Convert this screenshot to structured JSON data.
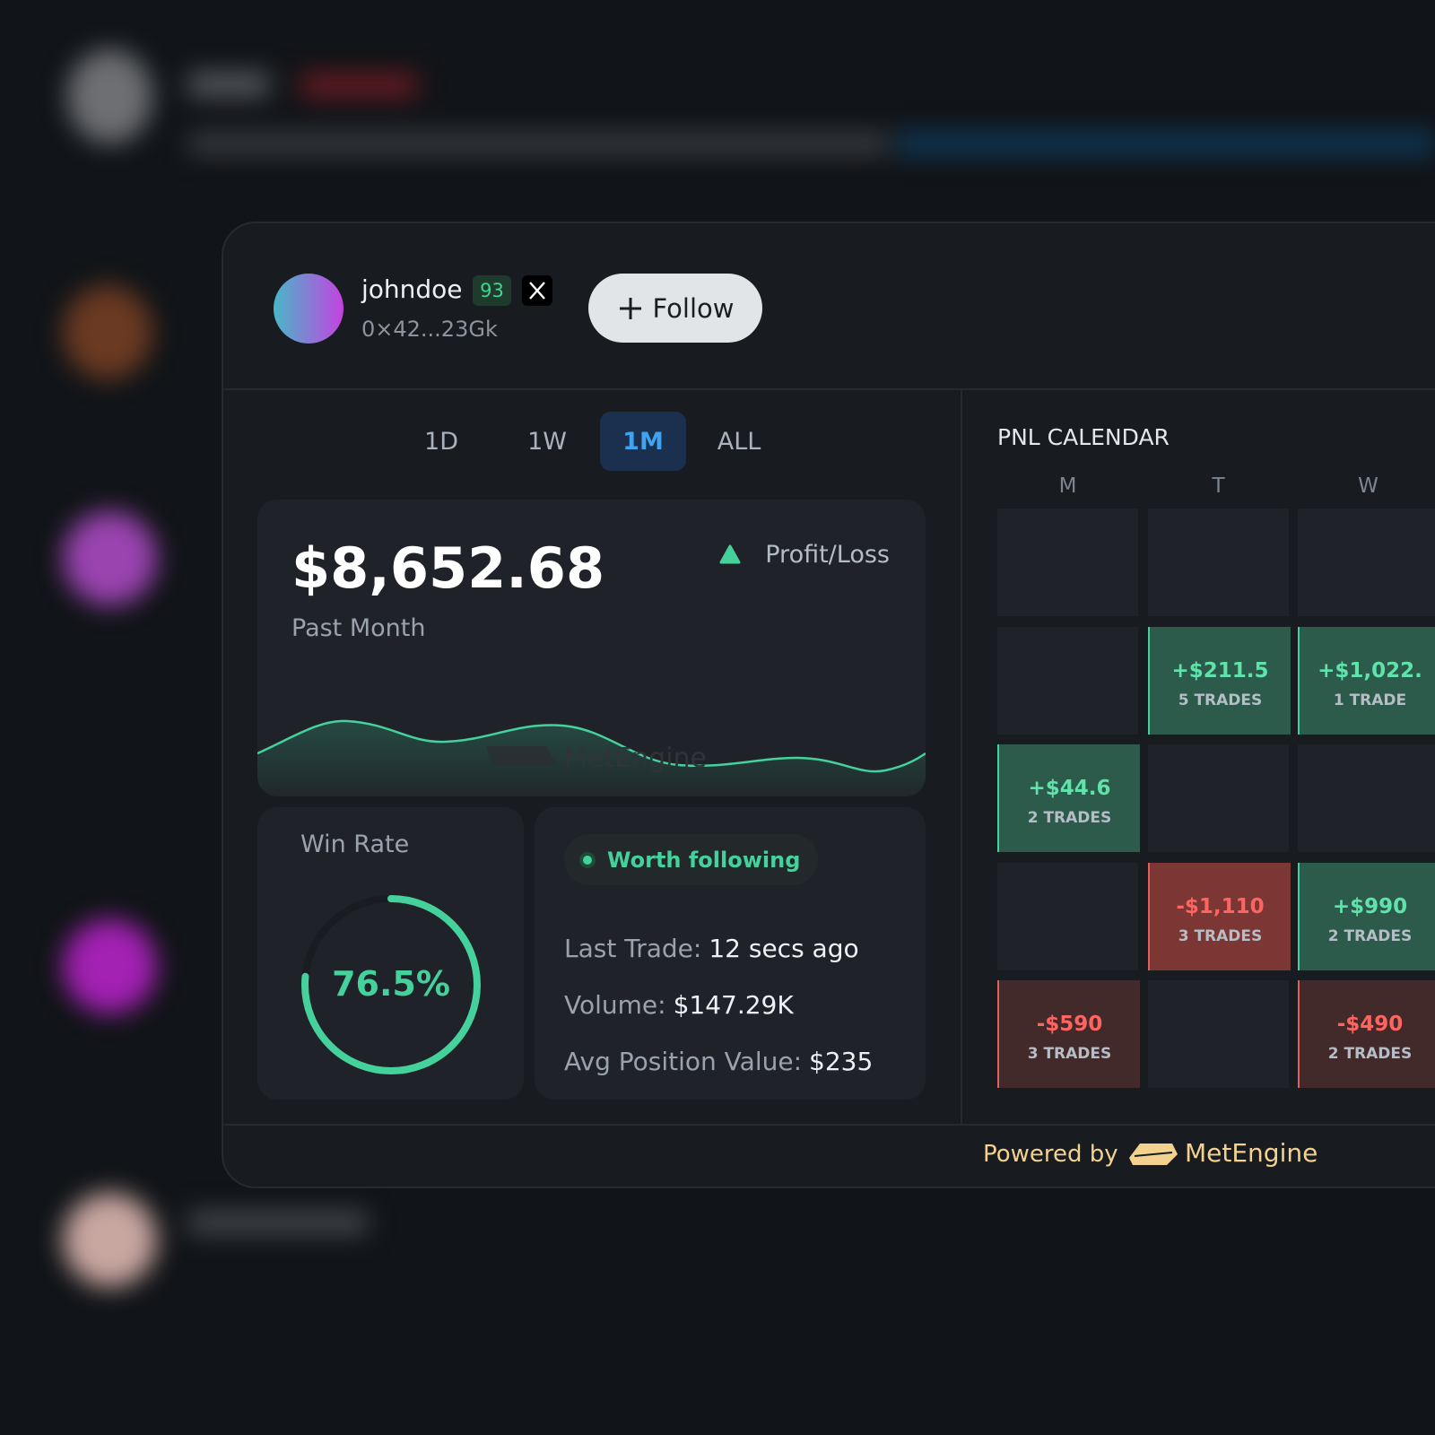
{
  "profile": {
    "username": "johndoe",
    "score": 93,
    "address": "0×42...23Gk",
    "follow_button": "Follow"
  },
  "tabs": {
    "items": [
      "1D",
      "1W",
      "1M",
      "ALL"
    ],
    "active": "1M"
  },
  "pnl": {
    "amount": "$8,652.68",
    "period": "Past Month",
    "legend": "Profit/Loss",
    "watermark": "MetEngine"
  },
  "win_rate": {
    "title": "Win Rate",
    "value": 76.5,
    "label": "76.5%"
  },
  "status": {
    "badge": "Worth following",
    "stats": [
      {
        "label": "Last Trade:",
        "value": "12 secs ago"
      },
      {
        "label": "Volume:",
        "value": "$147.29K"
      },
      {
        "label": "Avg Position Value:",
        "value": "$235"
      }
    ]
  },
  "calendar": {
    "title": "PNL CALENDAR",
    "days": [
      "M",
      "T",
      "W"
    ],
    "rows": [
      [
        null,
        null,
        null
      ],
      [
        null,
        {
          "amount": "+$211.5",
          "trades": "5 TRADES",
          "color": "#2c5a4b"
        },
        {
          "amount": "+$1,022.",
          "trades": "1 TRADE",
          "color": "#2c5a4b"
        }
      ],
      [
        {
          "amount": "+$44.6",
          "trades": "2 TRADES",
          "color": "#2c5a4b"
        },
        null,
        null
      ],
      [
        null,
        {
          "amount": "-$1,110",
          "trades": "3 TRADES",
          "color": "#7c3634"
        },
        {
          "amount": "+$990",
          "trades": "2 TRADES",
          "color": "#2c5a4b"
        }
      ],
      [
        {
          "amount": "-$590",
          "trades": "3 TRADES",
          "color": "#432a2a"
        },
        null,
        {
          "amount": "-$490",
          "trades": "2 TRADES",
          "color": "#432a2a"
        }
      ]
    ]
  },
  "footer": {
    "text": "Powered by",
    "brand": "MetEngine"
  }
}
